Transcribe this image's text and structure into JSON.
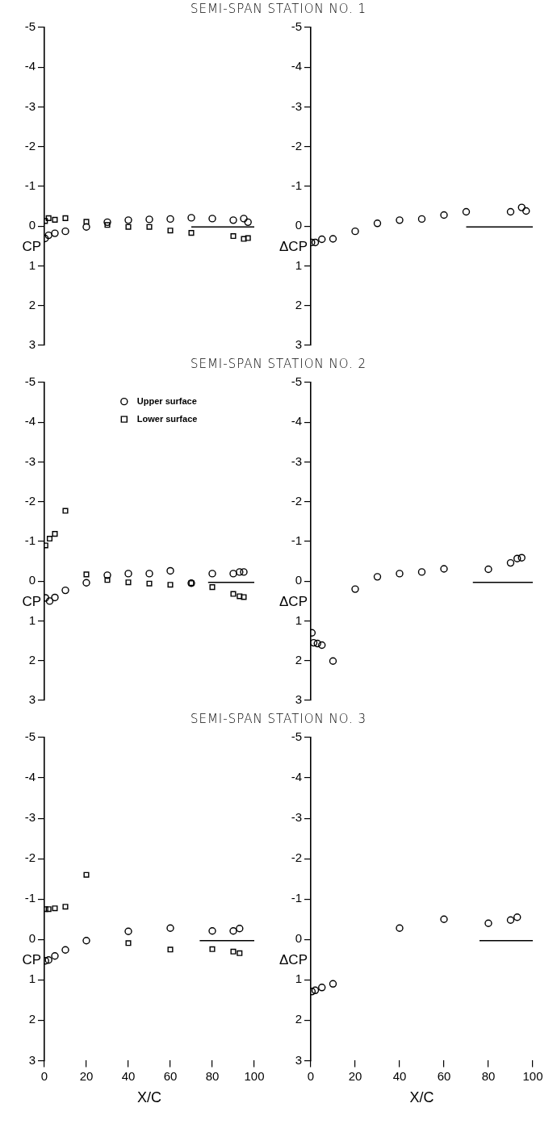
{
  "chart_data": [
    {
      "type": "scatter",
      "title": "SEMI-SPAN STATION NO. 1",
      "ylabel": "CP",
      "xlim": [
        0,
        100
      ],
      "ylim": [
        3,
        -5
      ],
      "yticks": [
        -5,
        -4,
        -3,
        -2,
        -1,
        0,
        1,
        2,
        3
      ],
      "tick_labels": "y",
      "series": [
        {
          "color": "#000000",
          "marker": "circle",
          "x": [
            0.3,
            2,
            5,
            10,
            20,
            30,
            40,
            50,
            60,
            70,
            80,
            90,
            95,
            97
          ],
          "values": [
            0.31,
            0.23,
            0.18,
            0.13,
            0.02,
            -0.1,
            -0.15,
            -0.17,
            -0.18,
            -0.21,
            -0.19,
            -0.15,
            -0.19,
            -0.1
          ]
        },
        {
          "color": "#000000",
          "marker": "square",
          "x": [
            0.3,
            2,
            5,
            10,
            20,
            30,
            40,
            50,
            60,
            70,
            80,
            90,
            95,
            97
          ],
          "values": [
            -0.13,
            -0.2,
            -0.16,
            -0.2,
            -0.11,
            -0.03,
            0.02,
            0.02,
            0.11,
            0.17,
            null,
            0.25,
            0.32,
            0.3
          ]
        },
        {
          "type": "line",
          "color": "#000000",
          "marker": "none",
          "x": [
            70,
            100
          ],
          "values": [
            0.02,
            0.02
          ]
        }
      ]
    },
    {
      "type": "scatter",
      "ylabel": "ΔCP",
      "xlim": [
        0,
        100
      ],
      "ylim": [
        3,
        -5
      ],
      "yticks": [
        -5,
        -4,
        -3,
        -2,
        -1,
        0,
        1,
        2,
        3
      ],
      "tick_labels": "y",
      "series": [
        {
          "color": "#000000",
          "marker": "circle",
          "x": [
            0.3,
            2,
            5,
            10,
            20,
            30,
            40,
            50,
            60,
            70,
            90,
            95,
            97
          ],
          "values": [
            0.41,
            0.41,
            0.33,
            0.32,
            0.13,
            -0.07,
            -0.15,
            -0.18,
            -0.28,
            -0.36,
            -0.36,
            -0.47,
            -0.38
          ]
        },
        {
          "type": "line",
          "color": "#000000",
          "marker": "none",
          "x": [
            70,
            100
          ],
          "values": [
            0.02,
            0.02
          ]
        }
      ]
    },
    {
      "type": "scatter",
      "title": "SEMI-SPAN STATION NO. 2",
      "ylabel": "CP",
      "xlim": [
        0,
        100
      ],
      "ylim": [
        3,
        -5
      ],
      "yticks": [
        -5,
        -4,
        -3,
        -2,
        -1,
        0,
        1,
        2,
        3
      ],
      "tick_labels": "y",
      "legend": "top",
      "series": [
        {
          "name": "Upper surface",
          "color": "#000000",
          "marker": "circle",
          "x": [
            0.5,
            2.5,
            5,
            10,
            20,
            30,
            40,
            50,
            60,
            70,
            80,
            90,
            93,
            95
          ],
          "values": [
            0.42,
            0.5,
            0.41,
            0.23,
            0.04,
            -0.15,
            -0.19,
            -0.19,
            -0.26,
            0.05,
            -0.19,
            -0.19,
            -0.23,
            -0.23
          ]
        },
        {
          "name": "Lower surface",
          "color": "#000000",
          "marker": "square",
          "x": [
            0.5,
            2.5,
            5,
            10,
            20,
            30,
            40,
            50,
            60,
            70,
            80,
            90,
            93,
            95
          ],
          "values": [
            -0.9,
            -1.07,
            -1.19,
            -1.77,
            -0.17,
            -0.03,
            0.03,
            0.06,
            0.09,
            0.05,
            0.15,
            0.32,
            0.38,
            0.4
          ]
        },
        {
          "type": "line",
          "color": "#000000",
          "marker": "none",
          "x": [
            78,
            100
          ],
          "values": [
            0.03,
            0.03
          ]
        }
      ]
    },
    {
      "type": "scatter",
      "ylabel": "ΔCP",
      "xlim": [
        0,
        100
      ],
      "ylim": [
        3,
        -5
      ],
      "yticks": [
        -5,
        -4,
        -3,
        -2,
        -1,
        0,
        1,
        2,
        3
      ],
      "tick_labels": "y",
      "series": [
        {
          "color": "#000000",
          "marker": "circle",
          "x": [
            0.5,
            1.3,
            3,
            5,
            10,
            20,
            30,
            40,
            50,
            60,
            80,
            90,
            93,
            95
          ],
          "values": [
            1.3,
            1.55,
            1.57,
            1.61,
            2.01,
            0.2,
            -0.11,
            -0.19,
            -0.23,
            -0.31,
            -0.3,
            -0.46,
            -0.57,
            -0.59
          ]
        },
        {
          "type": "line",
          "color": "#000000",
          "marker": "none",
          "x": [
            73,
            100
          ],
          "values": [
            0.03,
            0.03
          ]
        }
      ]
    },
    {
      "type": "scatter",
      "title": "SEMI-SPAN STATION NO. 3",
      "ylabel": "CP",
      "xlabel": "X/C",
      "xlim": [
        0,
        100
      ],
      "xticks": [
        0,
        20,
        40,
        60,
        80,
        100
      ],
      "ylim": [
        3,
        -5
      ],
      "yticks": [
        -5,
        -4,
        -3,
        -2,
        -1,
        0,
        1,
        2,
        3
      ],
      "series": [
        {
          "color": "#000000",
          "marker": "circle",
          "x": [
            0.5,
            2,
            5,
            10,
            20,
            40,
            60,
            80,
            90,
            93
          ],
          "values": [
            0.53,
            0.51,
            0.41,
            0.26,
            0.03,
            -0.2,
            -0.28,
            -0.21,
            -0.21,
            -0.27
          ]
        },
        {
          "color": "#000000",
          "marker": "square",
          "x": [
            0.5,
            2,
            5,
            10,
            20,
            40,
            60,
            80,
            90,
            93
          ],
          "values": [
            -0.75,
            -0.75,
            -0.77,
            -0.81,
            -1.6,
            0.09,
            0.25,
            0.24,
            0.3,
            0.34
          ]
        },
        {
          "type": "line",
          "color": "#000000",
          "marker": "none",
          "x": [
            74,
            100
          ],
          "values": [
            0.03,
            0.03
          ]
        }
      ]
    },
    {
      "type": "scatter",
      "ylabel": "ΔCP",
      "xlabel": "X/C",
      "xlim": [
        0,
        100
      ],
      "xticks": [
        0,
        20,
        40,
        60,
        80,
        100
      ],
      "ylim": [
        3,
        -5
      ],
      "yticks": [
        -5,
        -4,
        -3,
        -2,
        -1,
        0,
        1,
        2,
        3
      ],
      "series": [
        {
          "color": "#000000",
          "marker": "circle",
          "x": [
            0.5,
            2,
            5,
            10,
            40,
            60,
            80,
            90,
            93
          ],
          "values": [
            1.29,
            1.26,
            1.19,
            1.1,
            -0.28,
            -0.5,
            -0.4,
            -0.48,
            -0.55
          ]
        },
        {
          "type": "line",
          "color": "#000000",
          "marker": "none",
          "x": [
            76,
            100
          ],
          "values": [
            0.03,
            0.03
          ]
        }
      ]
    }
  ]
}
